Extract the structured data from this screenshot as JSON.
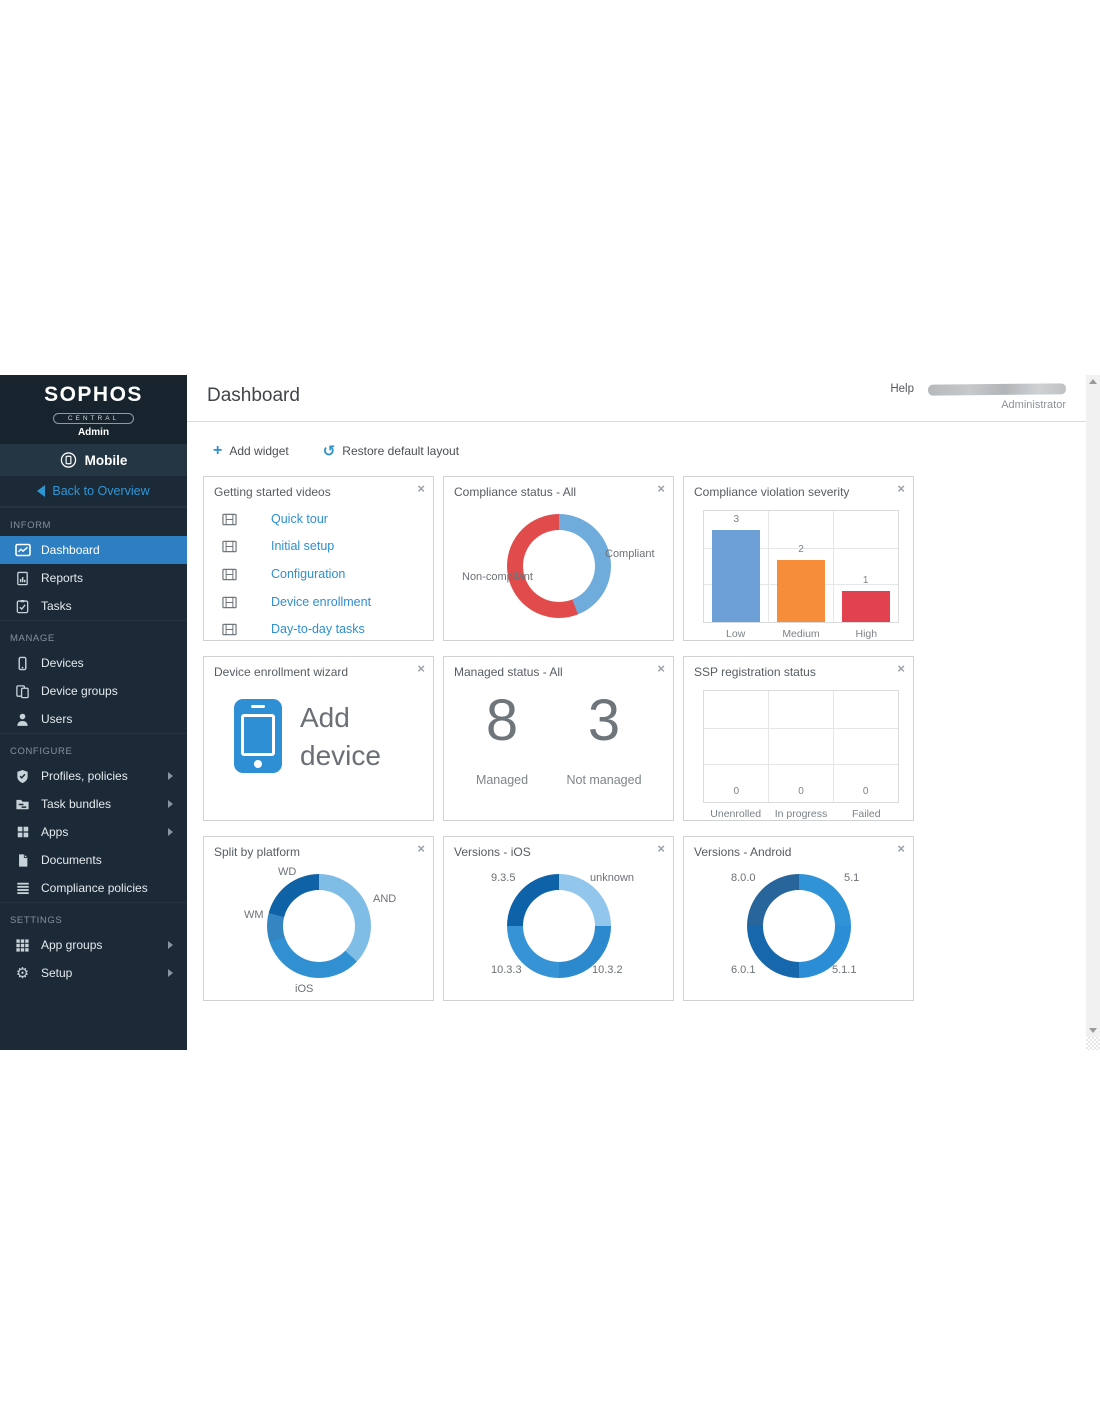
{
  "brand": {
    "logo": "SOPHOS",
    "central": "CENTRAL",
    "admin": "Admin"
  },
  "product": {
    "name": "Mobile"
  },
  "back": {
    "label": "Back to Overview"
  },
  "sidebar": {
    "sections": [
      {
        "label": "INFORM",
        "items": [
          {
            "label": "Dashboard"
          },
          {
            "label": "Reports"
          },
          {
            "label": "Tasks"
          }
        ]
      },
      {
        "label": "MANAGE",
        "items": [
          {
            "label": "Devices"
          },
          {
            "label": "Device groups"
          },
          {
            "label": "Users"
          }
        ]
      },
      {
        "label": "CONFIGURE",
        "items": [
          {
            "label": "Profiles, policies"
          },
          {
            "label": "Task bundles"
          },
          {
            "label": "Apps"
          },
          {
            "label": "Documents"
          },
          {
            "label": "Compliance policies"
          }
        ]
      },
      {
        "label": "SETTINGS",
        "items": [
          {
            "label": "App groups"
          },
          {
            "label": "Setup"
          }
        ]
      }
    ]
  },
  "header": {
    "title": "Dashboard",
    "help_label": "Help",
    "user_role": "Administrator"
  },
  "toolbar": {
    "add_widget_label": "Add widget",
    "restore_label": "Restore default layout",
    "plus_glyph": "+",
    "undo_glyph": "↺"
  },
  "widgets": {
    "close_glyph": "×",
    "getting_started": {
      "title": "Getting started videos",
      "videos": [
        "Quick tour",
        "Initial setup",
        "Configuration",
        "Device enrollment",
        "Day-to-day tasks"
      ]
    },
    "compliance_status": {
      "title": "Compliance status - All"
    },
    "violation_severity": {
      "title": "Compliance violation severity"
    },
    "enrollment_wizard": {
      "title": "Device enrollment wizard",
      "action_label": "Add device"
    },
    "managed_status": {
      "title": "Managed status - All"
    },
    "ssp_registration": {
      "title": "SSP registration status"
    },
    "split_platform": {
      "title": "Split by platform"
    },
    "versions_ios": {
      "title": "Versions - iOS"
    },
    "versions_android": {
      "title": "Versions - Android"
    }
  },
  "chart_data": [
    {
      "id": "compliance-status-all",
      "type": "pie",
      "title": "Compliance status - All",
      "labels": [
        "Compliant",
        "Non-compliant"
      ],
      "values": [
        44,
        56
      ],
      "values_note": "percent, estimated from arc angles",
      "colors": [
        "#6FACDC",
        "#E14B4B"
      ],
      "donut": true,
      "legend_position": "callout-labels"
    },
    {
      "id": "compliance-violation-severity",
      "type": "bar",
      "title": "Compliance violation severity",
      "categories": [
        "Low",
        "Medium",
        "High"
      ],
      "values": [
        3,
        2,
        1
      ],
      "colors": [
        "#6C9FD6",
        "#F68D3A",
        "#E2414F"
      ],
      "ylim": [
        0,
        3.6
      ],
      "grid": true,
      "value_labels": true
    },
    {
      "id": "managed-status-all",
      "type": "number",
      "title": "Managed status - All",
      "categories": [
        "Managed",
        "Not managed"
      ],
      "values": [
        8,
        3
      ]
    },
    {
      "id": "ssp-registration-status",
      "type": "bar",
      "title": "SSP registration status",
      "categories": [
        "Unenrolled",
        "In progress",
        "Failed"
      ],
      "values": [
        0,
        0,
        0
      ],
      "colors": [
        "#6C9FD6",
        "#6C9FD6",
        "#6C9FD6"
      ],
      "ylim": [
        0,
        3
      ],
      "grid": true,
      "value_labels": true
    },
    {
      "id": "split-by-platform",
      "type": "pie",
      "title": "Split by platform",
      "labels": [
        "AND",
        "iOS",
        "WM",
        "WD"
      ],
      "values": [
        37,
        33,
        9,
        21
      ],
      "values_note": "percent, estimated from arc angles",
      "colors": [
        "#7FBCE6",
        "#3190D2",
        "#3585C2",
        "#0F62A6"
      ],
      "donut": true,
      "legend_position": "callout-labels"
    },
    {
      "id": "versions-ios",
      "type": "pie",
      "title": "Versions - iOS",
      "labels": [
        "unknown",
        "10.3.2",
        "10.3.3",
        "9.3.5"
      ],
      "values": [
        25,
        25,
        25,
        25
      ],
      "values_note": "percent, estimated from arc angles",
      "colors": [
        "#92C6EC",
        "#2C89CD",
        "#3593D6",
        "#0E63A8"
      ],
      "donut": true,
      "legend_position": "callout-labels"
    },
    {
      "id": "versions-android",
      "type": "pie",
      "title": "Versions - Android",
      "labels": [
        "5.1",
        "5.1.1",
        "6.0.1",
        "8.0.0"
      ],
      "values": [
        25,
        25,
        25,
        25
      ],
      "values_note": "percent, estimated from arc angles",
      "colors": [
        "#3093D8",
        "#2A8DD6",
        "#1767AD",
        "#27659B"
      ],
      "donut": true,
      "legend_position": "callout-labels"
    }
  ]
}
